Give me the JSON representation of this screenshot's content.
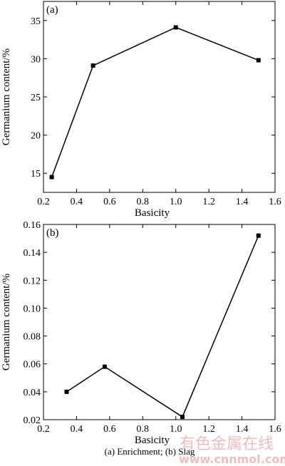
{
  "caption": "(a) Enrichment; (b) Slag",
  "watermark": {
    "text": "有色金属在线",
    "url": "www.cnnmol.com"
  },
  "chart_data": [
    {
      "type": "line",
      "panel_label": "(a)",
      "xlabel": "Basicity",
      "ylabel": "Germanium content/%",
      "xlim": [
        0.2,
        1.6
      ],
      "ylim": [
        12.5,
        37.5
      ],
      "xticks": [
        0.2,
        0.4,
        0.6,
        0.8,
        1.0,
        1.2,
        1.4,
        1.6
      ],
      "xtick_labels": [
        "0.2",
        "0.4",
        "0.6",
        "0.8",
        "1.0",
        "1.2",
        "1.4",
        "1.6"
      ],
      "yticks": [
        15,
        20,
        25,
        30,
        35
      ],
      "ytick_labels": [
        "15",
        "20",
        "25",
        "30",
        "35"
      ],
      "series": [
        {
          "x": [
            0.25,
            0.5,
            1.0,
            1.5
          ],
          "y": [
            14.5,
            29.1,
            34.1,
            29.8
          ]
        }
      ]
    },
    {
      "type": "line",
      "panel_label": "(b)",
      "xlabel": "Basicity",
      "ylabel": "Germanium content/%",
      "xlim": [
        0.2,
        1.6
      ],
      "ylim": [
        0.02,
        0.16
      ],
      "xticks": [
        0.2,
        0.4,
        0.6,
        0.8,
        1.0,
        1.2,
        1.4,
        1.6
      ],
      "xtick_labels": [
        "0.2",
        "0.4",
        "0.6",
        "0.8",
        "1.0",
        "1.2",
        "1.4",
        "1.6"
      ],
      "yticks": [
        0.02,
        0.04,
        0.06,
        0.08,
        0.1,
        0.12,
        0.14,
        0.16
      ],
      "ytick_labels": [
        "0.02",
        "0.04",
        "0.06",
        "0.08",
        "0.10",
        "0.12",
        "0.14",
        "0.16"
      ],
      "series": [
        {
          "x": [
            0.34,
            0.57,
            1.04,
            1.5
          ],
          "y": [
            0.04,
            0.058,
            0.022,
            0.152
          ]
        }
      ]
    }
  ]
}
